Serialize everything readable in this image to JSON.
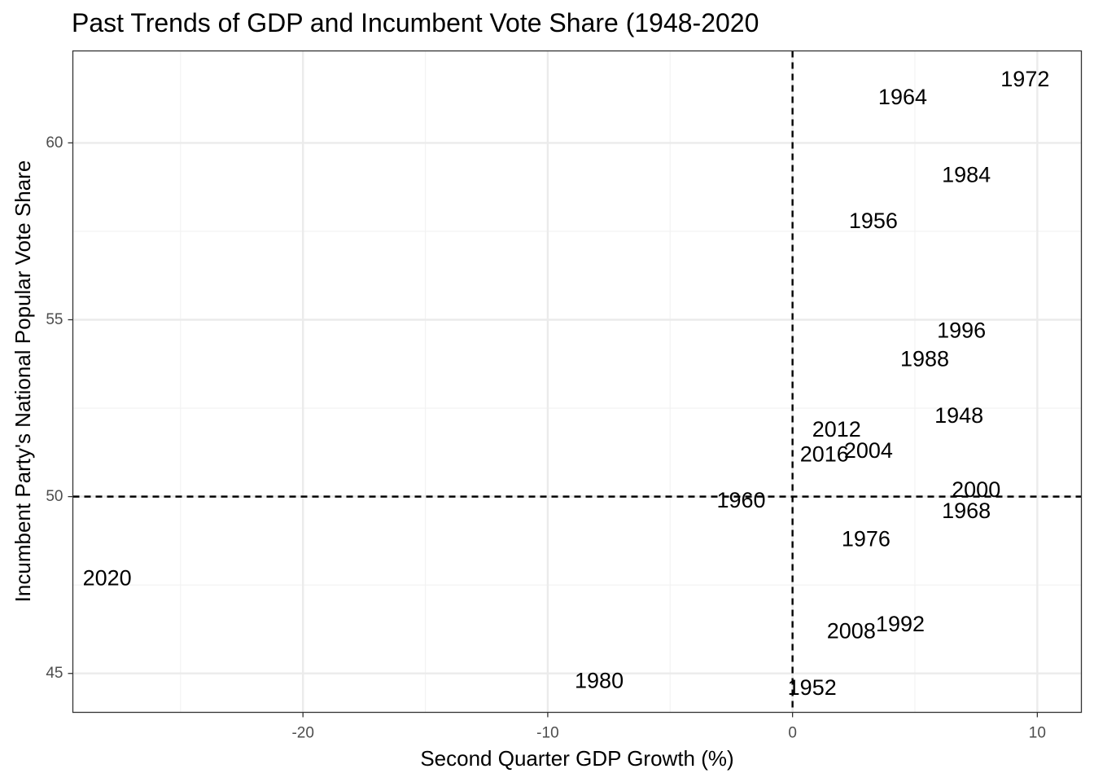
{
  "chart_data": {
    "type": "scatter",
    "title": "Past Trends of GDP and Incumbent Vote Share (1948-2020",
    "xlabel": "Second Quarter GDP Growth (%)",
    "ylabel": "Incumbent Party's National Popular Vote Share",
    "xlim": [
      -29.4,
      11.8
    ],
    "ylim": [
      43.9,
      62.6
    ],
    "x_ticks": [
      -20,
      -10,
      0,
      10
    ],
    "y_ticks": [
      45,
      50,
      55,
      60
    ],
    "x_tick_labels": [
      "-20",
      "-10",
      "0",
      "10"
    ],
    "y_tick_labels": [
      "45",
      "50",
      "55",
      "60"
    ],
    "x_minor_grid": [
      -25,
      -15,
      -5,
      5
    ],
    "y_minor_grid": [
      47.5,
      52.5,
      57.5
    ],
    "reference_lines": {
      "x": 0,
      "y": 50,
      "style": "dashed"
    },
    "grid": true,
    "points": [
      {
        "label": "1948",
        "x": 6.8,
        "y": 52.3
      },
      {
        "label": "1952",
        "x": 0.8,
        "y": 44.6
      },
      {
        "label": "1956",
        "x": 3.3,
        "y": 57.8
      },
      {
        "label": "1960",
        "x": -2.1,
        "y": 49.9
      },
      {
        "label": "1964",
        "x": 4.5,
        "y": 61.3
      },
      {
        "label": "1968",
        "x": 7.1,
        "y": 49.6
      },
      {
        "label": "1972",
        "x": 9.5,
        "y": 61.8
      },
      {
        "label": "1976",
        "x": 3.0,
        "y": 48.8
      },
      {
        "label": "1980",
        "x": -7.9,
        "y": 44.8
      },
      {
        "label": "1984",
        "x": 7.1,
        "y": 59.1
      },
      {
        "label": "1988",
        "x": 5.4,
        "y": 53.9
      },
      {
        "label": "1992",
        "x": 4.4,
        "y": 46.4
      },
      {
        "label": "1996",
        "x": 6.9,
        "y": 54.7
      },
      {
        "label": "2000",
        "x": 7.5,
        "y": 50.2
      },
      {
        "label": "2004",
        "x": 3.1,
        "y": 51.3
      },
      {
        "label": "2008",
        "x": 2.4,
        "y": 46.2
      },
      {
        "label": "2012",
        "x": 1.8,
        "y": 51.9
      },
      {
        "label": "2016",
        "x": 1.3,
        "y": 51.2
      },
      {
        "label": "2020",
        "x": -28.0,
        "y": 47.7
      }
    ]
  },
  "colors": {
    "background": "#ffffff",
    "panel_border": "#333333",
    "grid_major": "#ebebeb",
    "grid_minor": "#f2f2f2",
    "reference_line": "#000000",
    "tick_label": "#4d4d4d",
    "text": "#000000"
  }
}
